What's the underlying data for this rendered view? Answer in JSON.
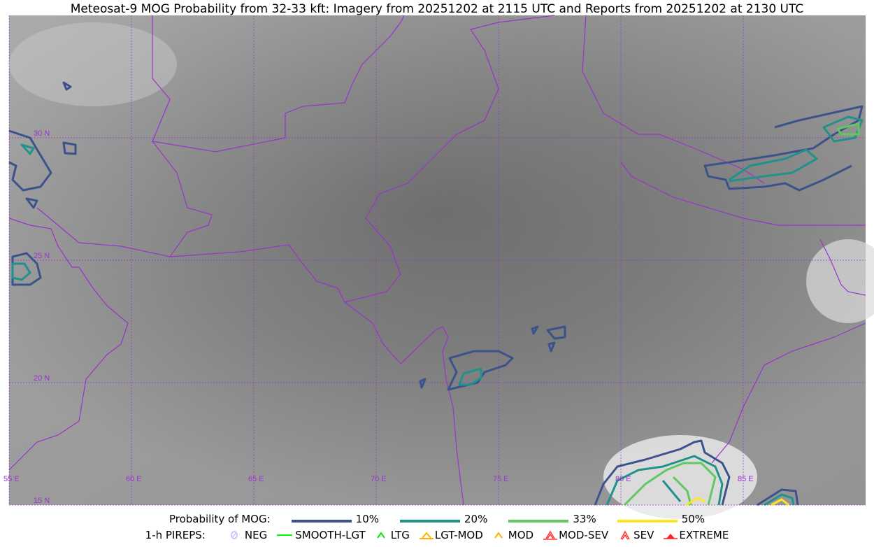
{
  "title": "Meteosat-9 MOG Probability from 32-33 kft: Imagery from 20251202 at 2115 UTC and Reports from 20251202 at 2130 UTC",
  "map": {
    "lon_labels": [
      "55 E",
      "60 E",
      "65 E",
      "70 E",
      "75 E",
      "80 E",
      "85 E"
    ],
    "lat_labels": [
      "15 N",
      "20 N",
      "25 N",
      "30 N"
    ],
    "border_color": "#9933cc",
    "grid_color": "#9933cc"
  },
  "legend": {
    "prob_title": "Probability of MOG:",
    "levels": [
      {
        "label": "10%",
        "color": "#3b528b"
      },
      {
        "label": "20%",
        "color": "#21918c"
      },
      {
        "label": "33%",
        "color": "#5ec962"
      },
      {
        "label": "50%",
        "color": "#fde725"
      }
    ],
    "pirep_title": "1-h PIREPS:",
    "pireps": [
      {
        "label": "NEG",
        "color": "#c8c8ff",
        "icon": "neg-circle-icon"
      },
      {
        "label": "SMOOTH-LGT",
        "color": "#00ff00",
        "icon": "line-icon"
      },
      {
        "label": "LTG",
        "color": "#00ee00",
        "icon": "caret-icon"
      },
      {
        "label": "LGT-MOD",
        "color": "#ffb300",
        "icon": "caret-bar-icon"
      },
      {
        "label": "MOD",
        "color": "#ffb300",
        "icon": "caret-icon"
      },
      {
        "label": "MOD-SEV",
        "color": "#ff3030",
        "icon": "double-caret-bar-icon"
      },
      {
        "label": "SEV",
        "color": "#ff3030",
        "icon": "double-caret-icon"
      },
      {
        "label": "EXTREME",
        "color": "#ff2020",
        "icon": "filled-triangle-icon"
      }
    ]
  }
}
